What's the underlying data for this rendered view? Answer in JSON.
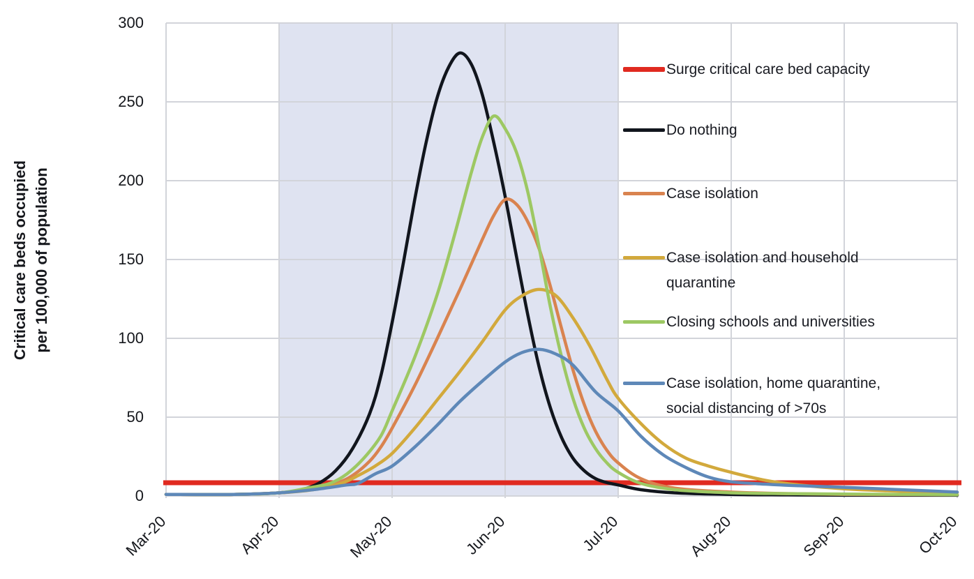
{
  "chart_data": {
    "type": "line",
    "title": "",
    "ylabel_lines": [
      "Critical care beds occupied",
      "per 100,000 of population"
    ],
    "ylabel": "Critical care beds occupied per 100,000 of population",
    "xlabel": "",
    "ylim": [
      0,
      300
    ],
    "y_ticks": [
      0,
      50,
      100,
      150,
      200,
      250,
      300
    ],
    "x_tick_labels": [
      "Mar-20",
      "Apr-20",
      "May-20",
      "Jun-20",
      "Jul-20",
      "Aug-20",
      "Sep-20",
      "Oct-20"
    ],
    "x_unit": "months after Mar-20",
    "grid": true,
    "legend_position": "right-inside",
    "shaded_region": {
      "from": "Apr-20",
      "to": "Jul-20",
      "from_month_index": 1,
      "to_month_index": 4,
      "color": "#dfe3f1"
    },
    "reference_line": {
      "label": "Surge critical care bed capacity",
      "value": 8.4,
      "color": "#e02a20"
    },
    "series": [
      {
        "name": "Do nothing",
        "color": "#11151d",
        "peak": {
          "x": 2.6,
          "value": 281
        },
        "points": [
          [
            0,
            1
          ],
          [
            0.6,
            1
          ],
          [
            1.0,
            2
          ],
          [
            1.2,
            4
          ],
          [
            1.35,
            8
          ],
          [
            1.5,
            16
          ],
          [
            1.65,
            30
          ],
          [
            1.8,
            52
          ],
          [
            1.9,
            76
          ],
          [
            2.0,
            110
          ],
          [
            2.1,
            148
          ],
          [
            2.2,
            188
          ],
          [
            2.3,
            224
          ],
          [
            2.4,
            253
          ],
          [
            2.5,
            272
          ],
          [
            2.6,
            281
          ],
          [
            2.7,
            274
          ],
          [
            2.8,
            254
          ],
          [
            2.9,
            224
          ],
          [
            3.0,
            190
          ],
          [
            3.1,
            152
          ],
          [
            3.2,
            115
          ],
          [
            3.3,
            82
          ],
          [
            3.4,
            56
          ],
          [
            3.5,
            37
          ],
          [
            3.6,
            24
          ],
          [
            3.7,
            16
          ],
          [
            3.8,
            11
          ],
          [
            3.9,
            8.5
          ],
          [
            4.0,
            7
          ],
          [
            4.2,
            4
          ],
          [
            4.5,
            2
          ],
          [
            5.0,
            1
          ],
          [
            5.5,
            0.7
          ],
          [
            6.0,
            0.5
          ],
          [
            6.5,
            0.5
          ],
          [
            7.0,
            0.5
          ]
        ]
      },
      {
        "name": "Case isolation",
        "color": "#d9834f",
        "peak": {
          "x": 3.0,
          "value": 188
        },
        "points": [
          [
            0,
            1
          ],
          [
            0.6,
            1
          ],
          [
            1.0,
            2
          ],
          [
            1.25,
            4
          ],
          [
            1.5,
            8
          ],
          [
            1.65,
            13
          ],
          [
            1.8,
            22
          ],
          [
            1.9,
            31
          ],
          [
            2.0,
            43
          ],
          [
            2.2,
            70
          ],
          [
            2.4,
            100
          ],
          [
            2.6,
            131
          ],
          [
            2.8,
            163
          ],
          [
            2.9,
            178
          ],
          [
            3.0,
            188
          ],
          [
            3.1,
            185
          ],
          [
            3.2,
            174
          ],
          [
            3.3,
            157
          ],
          [
            3.4,
            133
          ],
          [
            3.5,
            106
          ],
          [
            3.6,
            80
          ],
          [
            3.7,
            58
          ],
          [
            3.8,
            41
          ],
          [
            3.9,
            29
          ],
          [
            4.0,
            21
          ],
          [
            4.2,
            11
          ],
          [
            4.5,
            5
          ],
          [
            5.0,
            2.5
          ],
          [
            5.5,
            1.5
          ],
          [
            6.0,
            1
          ],
          [
            6.5,
            0.9
          ],
          [
            7.0,
            0.8
          ]
        ]
      },
      {
        "name": "Case isolation and household quarantine",
        "color": "#d2a93c",
        "peak": {
          "x": 3.3,
          "value": 131
        },
        "points": [
          [
            0,
            1
          ],
          [
            0.6,
            1
          ],
          [
            1.0,
            2
          ],
          [
            1.3,
            4
          ],
          [
            1.55,
            8
          ],
          [
            1.7,
            13
          ],
          [
            1.85,
            19
          ],
          [
            2.0,
            27
          ],
          [
            2.2,
            43
          ],
          [
            2.4,
            61
          ],
          [
            2.6,
            79
          ],
          [
            2.8,
            98
          ],
          [
            3.0,
            118
          ],
          [
            3.15,
            127
          ],
          [
            3.3,
            131
          ],
          [
            3.45,
            127
          ],
          [
            3.6,
            113
          ],
          [
            3.75,
            95
          ],
          [
            3.9,
            74
          ],
          [
            4.0,
            62
          ],
          [
            4.2,
            46
          ],
          [
            4.4,
            33
          ],
          [
            4.6,
            24
          ],
          [
            4.8,
            19
          ],
          [
            5.0,
            15
          ],
          [
            5.3,
            10
          ],
          [
            5.6,
            7
          ],
          [
            6.0,
            4.5
          ],
          [
            6.5,
            3
          ],
          [
            7.0,
            2.2
          ]
        ]
      },
      {
        "name": "Closing schools and universities",
        "color": "#9dc863",
        "peak": {
          "x": 2.9,
          "value": 241
        },
        "points": [
          [
            0,
            1
          ],
          [
            0.6,
            1
          ],
          [
            1.0,
            2
          ],
          [
            1.25,
            5
          ],
          [
            1.45,
            8
          ],
          [
            1.6,
            14
          ],
          [
            1.75,
            24
          ],
          [
            1.9,
            38
          ],
          [
            2.0,
            54
          ],
          [
            2.2,
            88
          ],
          [
            2.4,
            128
          ],
          [
            2.55,
            165
          ],
          [
            2.7,
            205
          ],
          [
            2.8,
            228
          ],
          [
            2.9,
            241
          ],
          [
            3.0,
            233
          ],
          [
            3.1,
            218
          ],
          [
            3.2,
            193
          ],
          [
            3.3,
            158
          ],
          [
            3.4,
            120
          ],
          [
            3.5,
            88
          ],
          [
            3.6,
            62
          ],
          [
            3.7,
            43
          ],
          [
            3.8,
            30
          ],
          [
            3.9,
            21
          ],
          [
            4.0,
            15
          ],
          [
            4.2,
            8
          ],
          [
            4.5,
            4
          ],
          [
            5.0,
            2
          ],
          [
            5.5,
            1.5
          ],
          [
            6.0,
            1.2
          ],
          [
            6.5,
            1
          ],
          [
            7.0,
            0.8
          ]
        ]
      },
      {
        "name": "Case isolation, home quarantine, social distancing of >70s",
        "color": "#5e88b8",
        "peak": {
          "x": 3.3,
          "value": 93
        },
        "points": [
          [
            0,
            1
          ],
          [
            0.6,
            1
          ],
          [
            1.0,
            2
          ],
          [
            1.3,
            4
          ],
          [
            1.6,
            7
          ],
          [
            1.7,
            8
          ],
          [
            1.85,
            14
          ],
          [
            2.0,
            19
          ],
          [
            2.2,
            31
          ],
          [
            2.4,
            45
          ],
          [
            2.6,
            60
          ],
          [
            2.8,
            73
          ],
          [
            3.0,
            85
          ],
          [
            3.15,
            91
          ],
          [
            3.3,
            93
          ],
          [
            3.45,
            90
          ],
          [
            3.6,
            83
          ],
          [
            3.8,
            66
          ],
          [
            4.0,
            54
          ],
          [
            4.2,
            38
          ],
          [
            4.4,
            26
          ],
          [
            4.6,
            18
          ],
          [
            4.8,
            12
          ],
          [
            5.0,
            9
          ],
          [
            5.3,
            7.5
          ],
          [
            5.6,
            6.5
          ],
          [
            6.0,
            5.5
          ],
          [
            6.5,
            4
          ],
          [
            7.0,
            2.5
          ]
        ]
      }
    ],
    "legend": [
      {
        "label": "Surge critical care bed capacity",
        "color": "#e02a20"
      },
      {
        "label": "Do nothing",
        "color": "#11151d"
      },
      {
        "label": "Case isolation",
        "color": "#d9834f"
      },
      {
        "label": "Case isolation and household\nquarantine",
        "color": "#d2a93c"
      },
      {
        "label": "Closing schools and universities",
        "color": "#9dc863"
      },
      {
        "label": "Case isolation, home quarantine,\nsocial distancing of >70s",
        "color": "#5e88b8"
      }
    ]
  }
}
